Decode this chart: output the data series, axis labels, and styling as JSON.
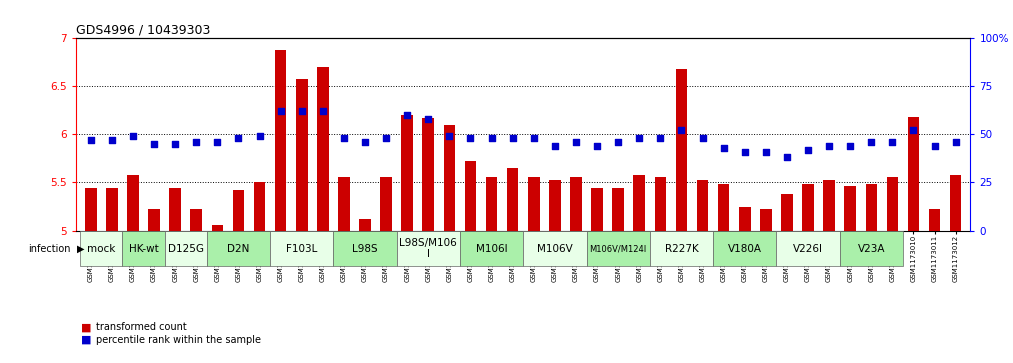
{
  "title": "GDS4996 / 10439303",
  "samples": [
    "GSM1172653",
    "GSM1172654",
    "GSM1172655",
    "GSM1172656",
    "GSM1172657",
    "GSM1172658",
    "GSM1173022",
    "GSM1173023",
    "GSM1173024",
    "GSM1173007",
    "GSM1173008",
    "GSM1173009",
    "GSM1172659",
    "GSM1172660",
    "GSM1172661",
    "GSM1173013",
    "GSM1173014",
    "GSM1173015",
    "GSM1173016",
    "GSM1173017",
    "GSM1173018",
    "GSM1172665",
    "GSM1172666",
    "GSM1172667",
    "GSM1172662",
    "GSM1172663",
    "GSM1172664",
    "GSM1173019",
    "GSM1173020",
    "GSM1173021",
    "GSM1173031",
    "GSM1173032",
    "GSM1173033",
    "GSM1173025",
    "GSM1173026",
    "GSM1173027",
    "GSM1173028",
    "GSM1173029",
    "GSM1173030",
    "GSM1173010",
    "GSM1173011",
    "GSM1173012"
  ],
  "bar_values": [
    5.44,
    5.44,
    5.58,
    5.22,
    5.44,
    5.22,
    5.06,
    5.42,
    5.5,
    6.88,
    6.58,
    6.7,
    5.56,
    5.12,
    5.56,
    6.2,
    6.17,
    6.1,
    5.72,
    5.56,
    5.65,
    5.56,
    5.52,
    5.56,
    5.44,
    5.44,
    5.58,
    5.56,
    6.68,
    5.52,
    5.48,
    5.24,
    5.22,
    5.38,
    5.48,
    5.52,
    5.46,
    5.48,
    5.56,
    6.18,
    5.22,
    5.58
  ],
  "dot_values": [
    47,
    47,
    49,
    45,
    45,
    46,
    46,
    48,
    49,
    62,
    62,
    62,
    48,
    46,
    48,
    60,
    58,
    49,
    48,
    48,
    48,
    48,
    44,
    46,
    44,
    46,
    48,
    48,
    52,
    48,
    43,
    41,
    41,
    38,
    42,
    44,
    44,
    46,
    46,
    52,
    44,
    46
  ],
  "groups": [
    {
      "label": "mock",
      "start": 0,
      "end": 1,
      "color": "#e8ffe8"
    },
    {
      "label": "HK-wt",
      "start": 2,
      "end": 3,
      "color": "#aaf0aa"
    },
    {
      "label": "D125G",
      "start": 4,
      "end": 5,
      "color": "#e8ffe8"
    },
    {
      "label": "D2N",
      "start": 6,
      "end": 8,
      "color": "#aaf0aa"
    },
    {
      "label": "F103L",
      "start": 9,
      "end": 11,
      "color": "#e8ffe8"
    },
    {
      "label": "L98S",
      "start": 12,
      "end": 14,
      "color": "#aaf0aa"
    },
    {
      "label": "L98S/M106\nI",
      "start": 15,
      "end": 17,
      "color": "#e8ffe8"
    },
    {
      "label": "M106I",
      "start": 18,
      "end": 20,
      "color": "#aaf0aa"
    },
    {
      "label": "M106V",
      "start": 21,
      "end": 23,
      "color": "#e8ffe8"
    },
    {
      "label": "M106V/M124I",
      "start": 24,
      "end": 26,
      "color": "#aaf0aa"
    },
    {
      "label": "R227K",
      "start": 27,
      "end": 29,
      "color": "#e8ffe8"
    },
    {
      "label": "V180A",
      "start": 30,
      "end": 32,
      "color": "#aaf0aa"
    },
    {
      "label": "V226I",
      "start": 33,
      "end": 35,
      "color": "#e8ffe8"
    },
    {
      "label": "V23A",
      "start": 36,
      "end": 38,
      "color": "#aaf0aa"
    }
  ],
  "ylim_left": [
    5.0,
    7.0
  ],
  "ylim_right": [
    0,
    100
  ],
  "yticks_left": [
    5.0,
    5.5,
    6.0,
    6.5,
    7.0
  ],
  "yticks_right": [
    0,
    25,
    50,
    75,
    100
  ],
  "bar_color": "#cc0000",
  "dot_color": "#0000cc"
}
